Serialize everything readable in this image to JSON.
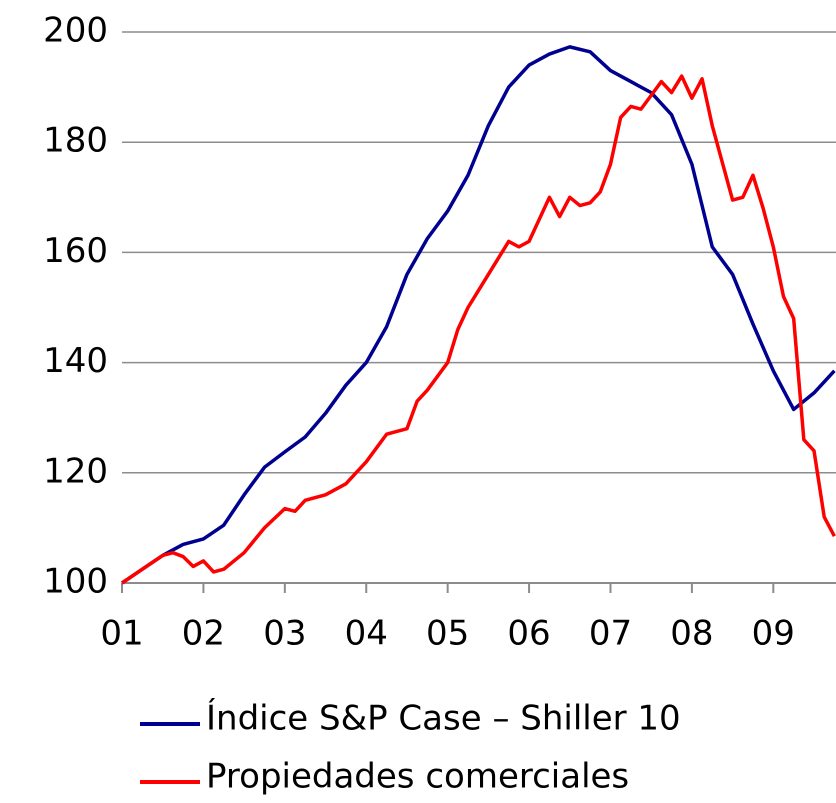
{
  "chart_data": {
    "type": "line",
    "xlim": [
      1,
      9.77
    ],
    "xticks": [
      {
        "value": 1,
        "label": "01"
      },
      {
        "value": 2,
        "label": "02"
      },
      {
        "value": 3,
        "label": "03"
      },
      {
        "value": 4,
        "label": "04"
      },
      {
        "value": 5,
        "label": "05"
      },
      {
        "value": 6,
        "label": "06"
      },
      {
        "value": 7,
        "label": "07"
      },
      {
        "value": 8,
        "label": "08"
      },
      {
        "value": 9,
        "label": "09"
      }
    ],
    "ylim": [
      100,
      200
    ],
    "yticks": [
      100,
      120,
      140,
      160,
      180,
      200
    ],
    "grid": true,
    "series": [
      {
        "name": "Índice S&P Case – Shiller 10",
        "color": "#000090",
        "x": [
          1,
          1.25,
          1.5,
          1.75,
          2,
          2.25,
          2.5,
          2.75,
          3,
          3.25,
          3.5,
          3.75,
          4,
          4.25,
          4.5,
          4.75,
          5,
          5.25,
          5.5,
          5.75,
          6,
          6.25,
          6.5,
          6.75,
          7,
          7.25,
          7.5,
          7.75,
          8,
          8.25,
          8.5,
          8.75,
          9,
          9.25,
          9.5,
          9.75
        ],
        "values": [
          100,
          102.5,
          105,
          107,
          108,
          110.5,
          116,
          121,
          123.8,
          126.5,
          130.8,
          135.9,
          140,
          146.5,
          156,
          162.5,
          167.5,
          174,
          183,
          190,
          194,
          196,
          197.3,
          196.4,
          193,
          191,
          189,
          185,
          176,
          161,
          156,
          147,
          138.5,
          131.5,
          134.5,
          138.5
        ]
      },
      {
        "name": "Propiedades comerciales",
        "color": "#ff0000",
        "x": [
          1,
          1.25,
          1.5,
          1.625,
          1.75,
          1.875,
          2,
          2.125,
          2.25,
          2.5,
          2.75,
          3,
          3.125,
          3.25,
          3.5,
          3.75,
          4,
          4.25,
          4.5,
          4.625,
          4.75,
          5,
          5.125,
          5.25,
          5.5,
          5.75,
          5.875,
          6,
          6.25,
          6.375,
          6.5,
          6.625,
          6.75,
          6.875,
          7,
          7.125,
          7.25,
          7.375,
          7.5,
          7.625,
          7.75,
          7.875,
          8,
          8.125,
          8.25,
          8.5,
          8.625,
          8.75,
          8.875,
          9,
          9.125,
          9.25,
          9.375,
          9.5,
          9.625,
          9.75
        ],
        "values": [
          100,
          102.5,
          105,
          105.5,
          104.8,
          103,
          104,
          102,
          102.5,
          105.5,
          110,
          113.5,
          113,
          115,
          116,
          118,
          122,
          127,
          128,
          133,
          135,
          140,
          146,
          150,
          156,
          162,
          161,
          162,
          170,
          166.5,
          170,
          168.5,
          169,
          171,
          176,
          184.5,
          186.5,
          186,
          188.5,
          191,
          189,
          192,
          188,
          191.5,
          183,
          169.5,
          170,
          174,
          168,
          161,
          152,
          148,
          126,
          124,
          112,
          108.5
        ]
      }
    ]
  }
}
